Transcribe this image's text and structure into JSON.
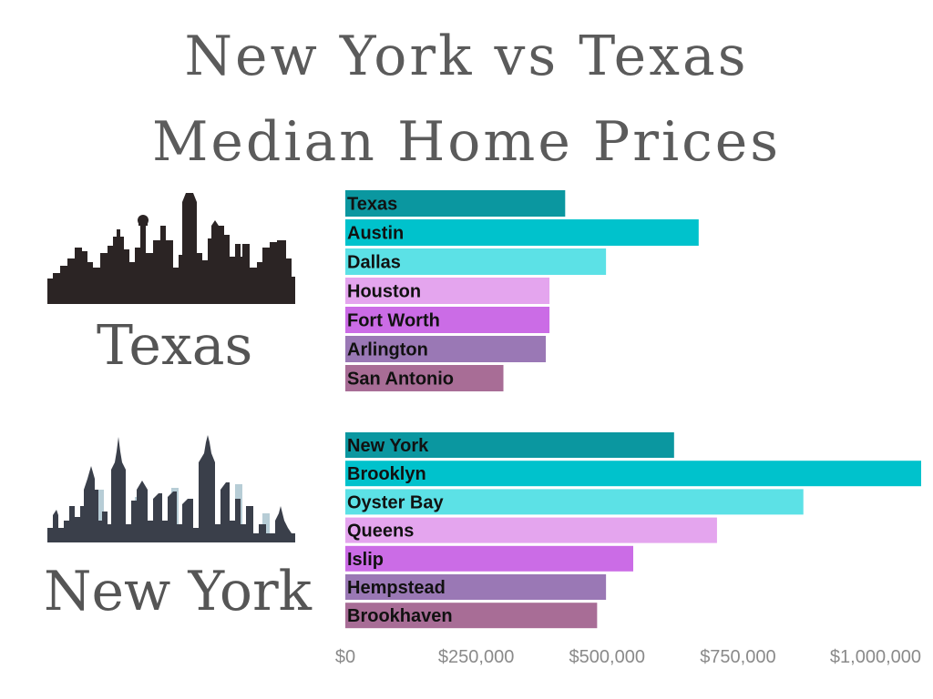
{
  "header": {
    "title_line1": "New York vs Texas",
    "title_line2": "Median Home Prices"
  },
  "sections": {
    "texas_label": "Texas",
    "new_york_label": "New York"
  },
  "colors": {
    "teal_dark": "#0b97a0",
    "teal": "#00c2cc",
    "teal_light": "#5ce1e6",
    "pink_light": "#e4a5ee",
    "violet": "#cb6ce6",
    "lavender": "#9a78b5",
    "mauve": "#a86d96",
    "texas_skyline": "#2b2424",
    "ny_skyline": "#3a3f4a",
    "ny_skyline_accent": "#b7cdd6"
  },
  "chart_data": {
    "type": "bar",
    "orientation": "horizontal",
    "xlim": [
      0,
      1100000
    ],
    "x_ticks": [
      {
        "value": 0,
        "label": "$0"
      },
      {
        "value": 250000,
        "label": "$250,000"
      },
      {
        "value": 500000,
        "label": "$500,000"
      },
      {
        "value": 750000,
        "label": "$750,000"
      },
      {
        "value": 1000000,
        "label": "$1,000,000"
      }
    ],
    "groups": [
      {
        "name": "Texas",
        "bars": [
          {
            "label": "Texas",
            "value": 420000,
            "color": "#0b97a0"
          },
          {
            "label": "Austin",
            "value": 675000,
            "color": "#00c2cc"
          },
          {
            "label": "Dallas",
            "value": 498000,
            "color": "#5ce1e6"
          },
          {
            "label": "Houston",
            "value": 390000,
            "color": "#e4a5ee"
          },
          {
            "label": "Fort Worth",
            "value": 390000,
            "color": "#cb6ce6"
          },
          {
            "label": "Arlington",
            "value": 383000,
            "color": "#9a78b5"
          },
          {
            "label": "San Antonio",
            "value": 302000,
            "color": "#a86d96"
          }
        ]
      },
      {
        "name": "New York",
        "bars": [
          {
            "label": "New York",
            "value": 628000,
            "color": "#0b97a0"
          },
          {
            "label": "Brooklyn",
            "value": 1100000,
            "color": "#00c2cc"
          },
          {
            "label": "Oyster Bay",
            "value": 875000,
            "color": "#5ce1e6"
          },
          {
            "label": "Queens",
            "value": 710000,
            "color": "#e4a5ee"
          },
          {
            "label": "Islip",
            "value": 550000,
            "color": "#cb6ce6"
          },
          {
            "label": "Hempstead",
            "value": 498000,
            "color": "#9a78b5"
          },
          {
            "label": "Brookhaven",
            "value": 481000,
            "color": "#a86d96"
          }
        ]
      }
    ]
  }
}
